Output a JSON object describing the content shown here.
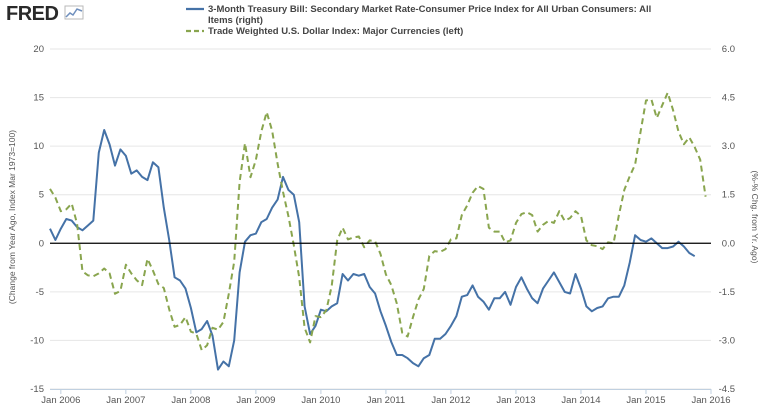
{
  "logo": {
    "text": "FRED"
  },
  "chart_data": {
    "type": "line",
    "legend_position": "top",
    "grid": "horizontal",
    "zero_line": true,
    "left_axis": {
      "label": "(Change from Year Ago, Index Mar 1973=100)",
      "range": [
        -15,
        20
      ],
      "ticks": [
        -15,
        -10,
        -5,
        0,
        5,
        10,
        15,
        20
      ],
      "tick_labels": [
        "-15",
        "-10",
        "-5",
        "0",
        "5",
        "10",
        "15",
        "20"
      ]
    },
    "right_axis": {
      "label": "(%-% Chg. from Yr. Ago)",
      "range": [
        -4.5,
        6.0
      ],
      "ticks": [
        -4.5,
        -3.0,
        -1.5,
        0.0,
        1.5,
        3.0,
        4.5,
        6.0
      ],
      "tick_labels": [
        "-4.5",
        "-3.0",
        "-1.5",
        "0.0",
        "1.5",
        "3.0",
        "4.5",
        "6.0"
      ]
    },
    "x_axis": {
      "range": [
        "2005-11",
        "2016-01"
      ],
      "tick_dates": [
        "2006-01",
        "2007-01",
        "2008-01",
        "2009-01",
        "2010-01",
        "2011-01",
        "2012-01",
        "2013-01",
        "2014-01",
        "2015-01",
        "2016-01"
      ],
      "tick_labels": [
        "Jan 2006",
        "Jan 2007",
        "Jan 2008",
        "Jan 2009",
        "Jan 2010",
        "Jan 2011",
        "Jan 2012",
        "Jan 2013",
        "Jan 2014",
        "Jan 2015",
        "Jan 2016"
      ]
    },
    "series": [
      {
        "name": "3-Month Treasury Bill: Secondary Market Rate-Consumer Price Index for All Urban Consumers: All Items (right)",
        "legend_lines": [
          "3-Month Treasury Bill: Secondary Market Rate-Consumer Price Index for All Urban Consumers: All",
          "Items (right)"
        ],
        "axis": "right",
        "color": "#4572a7",
        "style": "solid",
        "points": [
          [
            "2005-11",
            0.45
          ],
          [
            "2005-12",
            0.1
          ],
          [
            "2006-01",
            0.45
          ],
          [
            "2006-02",
            0.75
          ],
          [
            "2006-03",
            0.7
          ],
          [
            "2006-04",
            0.5
          ],
          [
            "2006-05",
            0.4
          ],
          [
            "2006-06",
            0.55
          ],
          [
            "2006-07",
            0.7
          ],
          [
            "2006-08",
            2.8
          ],
          [
            "2006-09",
            3.5
          ],
          [
            "2006-10",
            3.05
          ],
          [
            "2006-11",
            2.4
          ],
          [
            "2006-12",
            2.9
          ],
          [
            "2007-01",
            2.7
          ],
          [
            "2007-02",
            2.15
          ],
          [
            "2007-03",
            2.25
          ],
          [
            "2007-04",
            2.05
          ],
          [
            "2007-05",
            1.95
          ],
          [
            "2007-06",
            2.5
          ],
          [
            "2007-07",
            2.35
          ],
          [
            "2007-08",
            1.1
          ],
          [
            "2007-09",
            0.1
          ],
          [
            "2007-10",
            -1.05
          ],
          [
            "2007-11",
            -1.15
          ],
          [
            "2007-12",
            -1.4
          ],
          [
            "2008-01",
            -2.0
          ],
          [
            "2008-02",
            -2.75
          ],
          [
            "2008-03",
            -2.65
          ],
          [
            "2008-04",
            -2.4
          ],
          [
            "2008-05",
            -2.85
          ],
          [
            "2008-06",
            -3.9
          ],
          [
            "2008-07",
            -3.65
          ],
          [
            "2008-08",
            -3.8
          ],
          [
            "2008-09",
            -3.0
          ],
          [
            "2008-10",
            -0.9
          ],
          [
            "2008-11",
            0.05
          ],
          [
            "2008-12",
            0.25
          ],
          [
            "2009-01",
            0.3
          ],
          [
            "2009-02",
            0.65
          ],
          [
            "2009-03",
            0.75
          ],
          [
            "2009-04",
            1.1
          ],
          [
            "2009-05",
            1.35
          ],
          [
            "2009-06",
            2.05
          ],
          [
            "2009-07",
            1.65
          ],
          [
            "2009-08",
            1.5
          ],
          [
            "2009-09",
            0.65
          ],
          [
            "2009-10",
            -1.95
          ],
          [
            "2009-11",
            -2.8
          ],
          [
            "2009-12",
            -2.55
          ],
          [
            "2010-01",
            -2.05
          ],
          [
            "2010-02",
            -2.1
          ],
          [
            "2010-03",
            -1.95
          ],
          [
            "2010-04",
            -1.85
          ],
          [
            "2010-05",
            -0.95
          ],
          [
            "2010-06",
            -1.15
          ],
          [
            "2010-07",
            -0.95
          ],
          [
            "2010-08",
            -1.0
          ],
          [
            "2010-09",
            -0.95
          ],
          [
            "2010-10",
            -1.35
          ],
          [
            "2010-11",
            -1.55
          ],
          [
            "2010-12",
            -2.1
          ],
          [
            "2011-01",
            -2.55
          ],
          [
            "2011-02",
            -3.05
          ],
          [
            "2011-03",
            -3.45
          ],
          [
            "2011-04",
            -3.45
          ],
          [
            "2011-05",
            -3.55
          ],
          [
            "2011-06",
            -3.7
          ],
          [
            "2011-07",
            -3.8
          ],
          [
            "2011-08",
            -3.55
          ],
          [
            "2011-09",
            -3.45
          ],
          [
            "2011-10",
            -2.95
          ],
          [
            "2011-11",
            -2.95
          ],
          [
            "2011-12",
            -2.8
          ],
          [
            "2012-01",
            -2.55
          ],
          [
            "2012-02",
            -2.25
          ],
          [
            "2012-03",
            -1.65
          ],
          [
            "2012-04",
            -1.6
          ],
          [
            "2012-05",
            -1.3
          ],
          [
            "2012-06",
            -1.65
          ],
          [
            "2012-07",
            -1.8
          ],
          [
            "2012-08",
            -2.05
          ],
          [
            "2012-09",
            -1.7
          ],
          [
            "2012-10",
            -1.7
          ],
          [
            "2012-11",
            -1.5
          ],
          [
            "2012-12",
            -1.9
          ],
          [
            "2013-01",
            -1.35
          ],
          [
            "2013-02",
            -1.05
          ],
          [
            "2013-03",
            -1.4
          ],
          [
            "2013-04",
            -1.7
          ],
          [
            "2013-05",
            -1.85
          ],
          [
            "2013-06",
            -1.4
          ],
          [
            "2013-07",
            -1.15
          ],
          [
            "2013-08",
            -0.9
          ],
          [
            "2013-09",
            -1.2
          ],
          [
            "2013-10",
            -1.5
          ],
          [
            "2013-11",
            -1.55
          ],
          [
            "2013-12",
            -0.95
          ],
          [
            "2014-01",
            -1.4
          ],
          [
            "2014-02",
            -1.95
          ],
          [
            "2014-03",
            -2.1
          ],
          [
            "2014-04",
            -2.0
          ],
          [
            "2014-05",
            -1.95
          ],
          [
            "2014-06",
            -1.7
          ],
          [
            "2014-07",
            -1.65
          ],
          [
            "2014-08",
            -1.65
          ],
          [
            "2014-09",
            -1.3
          ],
          [
            "2014-10",
            -0.6
          ],
          [
            "2014-11",
            0.25
          ],
          [
            "2014-12",
            0.1
          ],
          [
            "2015-01",
            0.05
          ],
          [
            "2015-02",
            0.15
          ],
          [
            "2015-03",
            0.0
          ],
          [
            "2015-04",
            -0.15
          ],
          [
            "2015-05",
            -0.15
          ],
          [
            "2015-06",
            -0.1
          ],
          [
            "2015-07",
            0.05
          ],
          [
            "2015-08",
            -0.1
          ],
          [
            "2015-09",
            -0.3
          ],
          [
            "2015-10",
            -0.4
          ]
        ]
      },
      {
        "name": "Trade Weighted U.S. Dollar Index: Major Currencies (left)",
        "legend_lines": [
          "Trade Weighted U.S. Dollar Index: Major Currencies (left)"
        ],
        "axis": "left",
        "color": "#89a54e",
        "style": "dashed",
        "points": [
          [
            "2005-11",
            5.6
          ],
          [
            "2005-12",
            4.7
          ],
          [
            "2006-01",
            3.3
          ],
          [
            "2006-02",
            3.5
          ],
          [
            "2006-03",
            4.1
          ],
          [
            "2006-04",
            2.0
          ],
          [
            "2006-05",
            -2.9
          ],
          [
            "2006-06",
            -3.3
          ],
          [
            "2006-07",
            -3.4
          ],
          [
            "2006-08",
            -3.1
          ],
          [
            "2006-09",
            -2.6
          ],
          [
            "2006-10",
            -3.1
          ],
          [
            "2006-11",
            -5.2
          ],
          [
            "2006-12",
            -4.9
          ],
          [
            "2007-01",
            -2.2
          ],
          [
            "2007-02",
            -3.1
          ],
          [
            "2007-03",
            -3.8
          ],
          [
            "2007-04",
            -4.3
          ],
          [
            "2007-05",
            -1.6
          ],
          [
            "2007-06",
            -2.8
          ],
          [
            "2007-07",
            -4.2
          ],
          [
            "2007-08",
            -4.6
          ],
          [
            "2007-09",
            -6.8
          ],
          [
            "2007-10",
            -8.6
          ],
          [
            "2007-11",
            -8.4
          ],
          [
            "2007-12",
            -7.6
          ],
          [
            "2008-01",
            -9.1
          ],
          [
            "2008-02",
            -9.3
          ],
          [
            "2008-03",
            -11.0
          ],
          [
            "2008-04",
            -10.5
          ],
          [
            "2008-05",
            -8.7
          ],
          [
            "2008-06",
            -8.9
          ],
          [
            "2008-07",
            -8.1
          ],
          [
            "2008-08",
            -5.2
          ],
          [
            "2008-09",
            -1.9
          ],
          [
            "2008-10",
            6.3
          ],
          [
            "2008-11",
            10.3
          ],
          [
            "2008-12",
            6.8
          ],
          [
            "2009-01",
            8.6
          ],
          [
            "2009-02",
            11.5
          ],
          [
            "2009-03",
            13.5
          ],
          [
            "2009-04",
            11.6
          ],
          [
            "2009-05",
            8.2
          ],
          [
            "2009-06",
            5.3
          ],
          [
            "2009-07",
            2.8
          ],
          [
            "2009-08",
            -0.2
          ],
          [
            "2009-09",
            -3.5
          ],
          [
            "2009-10",
            -8.7
          ],
          [
            "2009-11",
            -10.2
          ],
          [
            "2009-12",
            -7.5
          ],
          [
            "2010-01",
            -7.6
          ],
          [
            "2010-02",
            -6.9
          ],
          [
            "2010-03",
            -4.4
          ],
          [
            "2010-04",
            0.3
          ],
          [
            "2010-05",
            1.6
          ],
          [
            "2010-06",
            0.4
          ],
          [
            "2010-07",
            0.6
          ],
          [
            "2010-08",
            0.7
          ],
          [
            "2010-09",
            -0.4
          ],
          [
            "2010-10",
            0.3
          ],
          [
            "2010-11",
            0.2
          ],
          [
            "2010-12",
            -1.1
          ],
          [
            "2011-01",
            -3.2
          ],
          [
            "2011-02",
            -4.3
          ],
          [
            "2011-03",
            -6.2
          ],
          [
            "2011-04",
            -9.2
          ],
          [
            "2011-05",
            -9.6
          ],
          [
            "2011-06",
            -7.6
          ],
          [
            "2011-07",
            -5.8
          ],
          [
            "2011-08",
            -4.7
          ],
          [
            "2011-09",
            -1.3
          ],
          [
            "2011-10",
            -0.8
          ],
          [
            "2011-11",
            -0.9
          ],
          [
            "2011-12",
            -0.6
          ],
          [
            "2012-01",
            0.4
          ],
          [
            "2012-02",
            0.5
          ],
          [
            "2012-03",
            2.9
          ],
          [
            "2012-04",
            3.9
          ],
          [
            "2012-05",
            5.2
          ],
          [
            "2012-06",
            5.9
          ],
          [
            "2012-07",
            5.6
          ],
          [
            "2012-08",
            1.6
          ],
          [
            "2012-09",
            1.2
          ],
          [
            "2012-10",
            1.2
          ],
          [
            "2012-11",
            0.1
          ],
          [
            "2012-12",
            0.3
          ],
          [
            "2013-01",
            2.1
          ],
          [
            "2013-02",
            3.0
          ],
          [
            "2013-03",
            3.2
          ],
          [
            "2013-04",
            2.9
          ],
          [
            "2013-05",
            1.2
          ],
          [
            "2013-06",
            1.9
          ],
          [
            "2013-07",
            2.3
          ],
          [
            "2013-08",
            2.1
          ],
          [
            "2013-09",
            3.3
          ],
          [
            "2013-10",
            2.3
          ],
          [
            "2013-11",
            2.6
          ],
          [
            "2013-12",
            3.3
          ],
          [
            "2014-01",
            2.8
          ],
          [
            "2014-02",
            0.3
          ],
          [
            "2014-03",
            -0.2
          ],
          [
            "2014-04",
            -0.3
          ],
          [
            "2014-05",
            -0.6
          ],
          [
            "2014-06",
            0.1
          ],
          [
            "2014-07",
            0.0
          ],
          [
            "2014-08",
            2.9
          ],
          [
            "2014-09",
            5.5
          ],
          [
            "2014-10",
            6.9
          ],
          [
            "2014-11",
            8.1
          ],
          [
            "2014-12",
            11.5
          ],
          [
            "2015-01",
            14.7
          ],
          [
            "2015-02",
            14.8
          ],
          [
            "2015-03",
            12.9
          ],
          [
            "2015-04",
            14.2
          ],
          [
            "2015-05",
            15.5
          ],
          [
            "2015-06",
            13.7
          ],
          [
            "2015-07",
            11.5
          ],
          [
            "2015-08",
            10.2
          ],
          [
            "2015-09",
            10.9
          ],
          [
            "2015-10",
            9.9
          ],
          [
            "2015-11",
            8.6
          ],
          [
            "2015-12",
            4.8
          ]
        ]
      }
    ]
  }
}
